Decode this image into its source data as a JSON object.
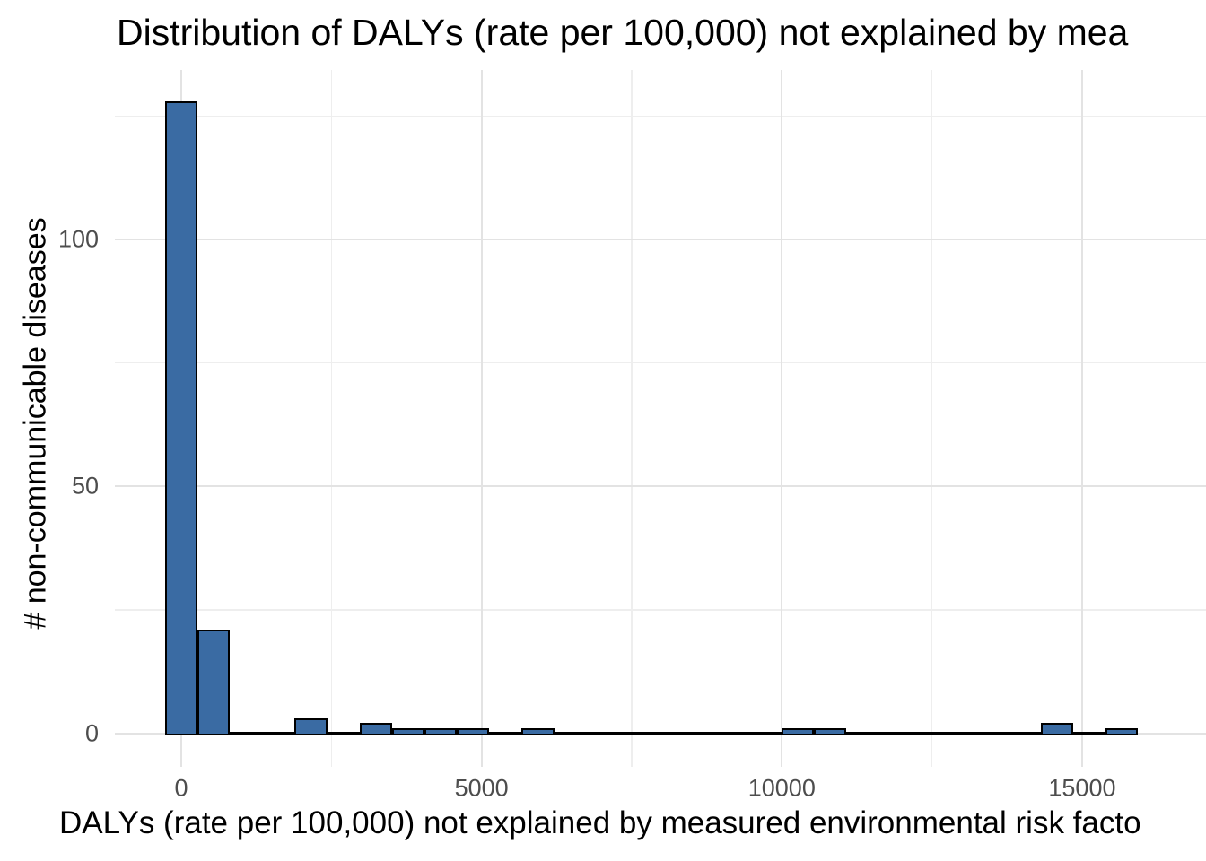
{
  "title": "Distribution of DALYs (rate per 100,000) not explained by mea",
  "chart_data": {
    "type": "bar",
    "subtype": "histogram",
    "title": "Distribution of DALYs (rate per 100,000) not explained by mea",
    "xlabel": "DALYs (rate per 100,000) not explained by measured environmental risk facto",
    "ylabel": "# non-communicable diseases",
    "bin_width": 540,
    "bin_centers": [
      0,
      540,
      1080,
      1620,
      2160,
      2700,
      3240,
      3780,
      4320,
      4860,
      5400,
      5940,
      6480,
      7020,
      7560,
      8100,
      8640,
      9180,
      9720,
      10260,
      10800,
      11340,
      11880,
      12420,
      12960,
      13500,
      14040,
      14580,
      15120,
      15660
    ],
    "counts": [
      128,
      21,
      0,
      0,
      3,
      0,
      2,
      1,
      1,
      1,
      0,
      1,
      0,
      0,
      0,
      0,
      0,
      0,
      0,
      1,
      1,
      0,
      0,
      0,
      0,
      0,
      0,
      2,
      0,
      1
    ],
    "x_ticks": [
      {
        "value": 0,
        "label": "0"
      },
      {
        "value": 5000,
        "label": "5000"
      },
      {
        "value": 10000,
        "label": "10000"
      },
      {
        "value": 15000,
        "label": "15000"
      }
    ],
    "x_minor_ticks": [
      2500,
      7500,
      12500
    ],
    "y_ticks": [
      {
        "value": 0,
        "label": "0"
      },
      {
        "value": 50,
        "label": "50"
      },
      {
        "value": 100,
        "label": "100"
      }
    ],
    "y_minor_ticks": [
      25,
      75,
      125
    ],
    "xlim": [
      -1080,
      17070
    ],
    "ylim": [
      0,
      134.5
    ],
    "grid": "on",
    "legend": "none",
    "bar_fill_color": "#3a6ba3",
    "bar_stroke_color": "#000000",
    "major_grid_color": "#e3e3e3",
    "minor_grid_color": "#eeeeee",
    "tick_label_color": "#4d4d4d",
    "title_color": "#000000"
  }
}
